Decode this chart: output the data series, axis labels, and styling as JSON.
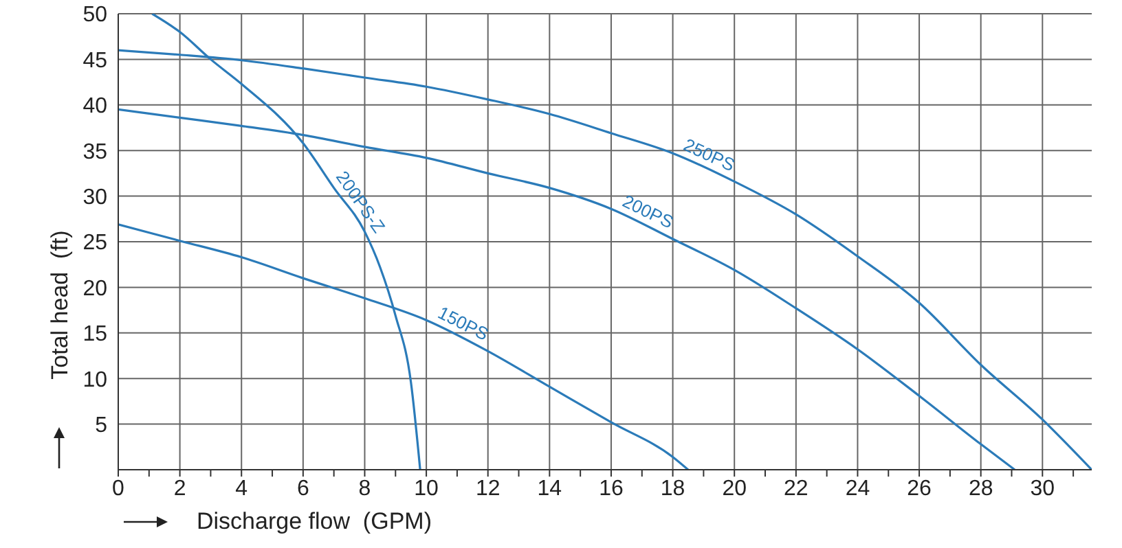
{
  "chart_data": {
    "type": "line",
    "xlabel": "Discharge flow  (GPM)",
    "ylabel": "Total head  (ft)",
    "xlim": [
      0,
      31.6
    ],
    "ylim": [
      0,
      50
    ],
    "xticks": [
      0,
      {
        "value": 1,
        "label": null
      },
      2,
      {
        "value": 3,
        "label": null
      },
      4,
      {
        "value": 5,
        "label": null
      },
      6,
      {
        "value": 7,
        "label": null
      },
      8,
      {
        "value": 9,
        "label": null
      },
      10,
      {
        "value": 11,
        "label": null
      },
      12,
      {
        "value": 13,
        "label": null
      },
      14,
      {
        "value": 15,
        "label": null
      },
      16,
      {
        "value": 17,
        "label": null
      },
      18,
      {
        "value": 19,
        "label": null
      },
      20,
      {
        "value": 21,
        "label": null
      },
      22,
      {
        "value": 23,
        "label": null
      },
      24,
      {
        "value": 25,
        "label": null
      },
      26,
      {
        "value": 27,
        "label": null
      },
      28,
      {
        "value": 29,
        "label": null
      },
      30,
      {
        "value": 31,
        "label": null
      }
    ],
    "yticks": [
      5,
      10,
      15,
      20,
      25,
      30,
      35,
      40,
      45,
      50
    ],
    "grid": true,
    "marker": "none",
    "line_style": "solid",
    "series": [
      {
        "name": "250PS",
        "color": "#2b7bb9",
        "x": [
          0,
          2,
          4,
          6,
          8,
          10,
          12,
          14,
          16,
          18,
          20,
          22,
          24,
          26,
          28,
          30,
          31.6
        ],
        "values": [
          46,
          45.5,
          44.9,
          44,
          43,
          42,
          40.6,
          39,
          36.9,
          34.7,
          31.6,
          28,
          23.4,
          18.3,
          11.5,
          5.5,
          0
        ]
      },
      {
        "name": "200PS",
        "color": "#2b7bb9",
        "x": [
          0,
          2,
          4,
          6,
          8,
          10,
          12,
          14,
          16,
          18,
          20,
          22,
          24,
          26,
          28,
          29.1
        ],
        "values": [
          39.5,
          38.6,
          37.7,
          36.7,
          35.4,
          34.2,
          32.5,
          30.9,
          28.6,
          25.3,
          21.9,
          17.7,
          13.2,
          8.1,
          2.8,
          0
        ]
      },
      {
        "name": "150PS",
        "color": "#2b7bb9",
        "x": [
          0,
          2,
          4,
          6,
          8,
          10,
          12,
          14,
          16,
          18,
          18.5
        ],
        "values": [
          26.9,
          25.1,
          23.3,
          21,
          18.8,
          16.4,
          13,
          9.1,
          5.2,
          1.4,
          0
        ]
      },
      {
        "name": "200PS-Z",
        "color": "#2b7bb9",
        "x": [
          1.1,
          2,
          3,
          4,
          6,
          7,
          8,
          8.5,
          9,
          9.5,
          9.8
        ],
        "values": [
          50,
          48,
          45,
          42.3,
          35.8,
          30.9,
          26.1,
          22.2,
          16.9,
          9.6,
          0
        ]
      }
    ]
  }
}
